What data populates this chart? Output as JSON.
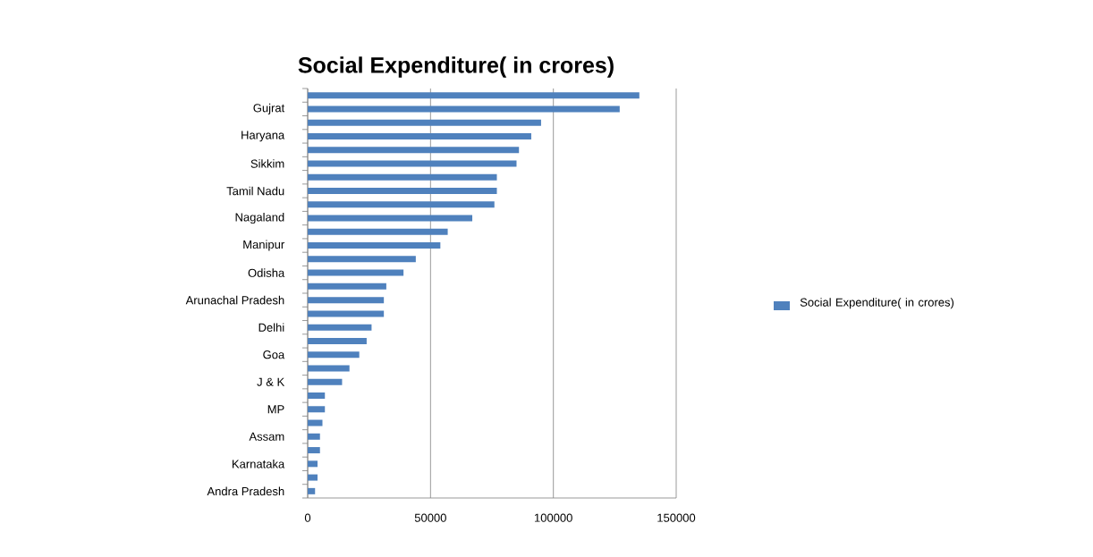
{
  "chart_data": {
    "type": "bar",
    "orientation": "horizontal",
    "title": "Social Expenditure( in crores)",
    "categories": [
      null,
      "Gujrat",
      null,
      "Haryana",
      null,
      "Sikkim",
      null,
      "Tamil Nadu",
      null,
      "Nagaland",
      null,
      "Manipur",
      null,
      "Odisha",
      null,
      "Arunachal Pradesh",
      null,
      "Delhi",
      null,
      "Goa",
      null,
      "J & K",
      null,
      "MP",
      null,
      "Assam",
      null,
      "Karnataka",
      null,
      "Andra Pradesh"
    ],
    "series": [
      {
        "name": "Social Expenditure( in crores)",
        "color": "#4f81bd",
        "values": [
          135000,
          127000,
          95000,
          91000,
          86000,
          85000,
          77000,
          77000,
          76000,
          67000,
          57000,
          54000,
          44000,
          39000,
          32000,
          31000,
          31000,
          26000,
          24000,
          21000,
          17000,
          14000,
          7000,
          7000,
          6000,
          5000,
          5000,
          4000,
          4000,
          3000
        ]
      }
    ],
    "xlim": [
      0,
      150000
    ],
    "xticks": [
      0,
      50000,
      100000,
      150000
    ],
    "grid": "x",
    "legend": "right"
  }
}
